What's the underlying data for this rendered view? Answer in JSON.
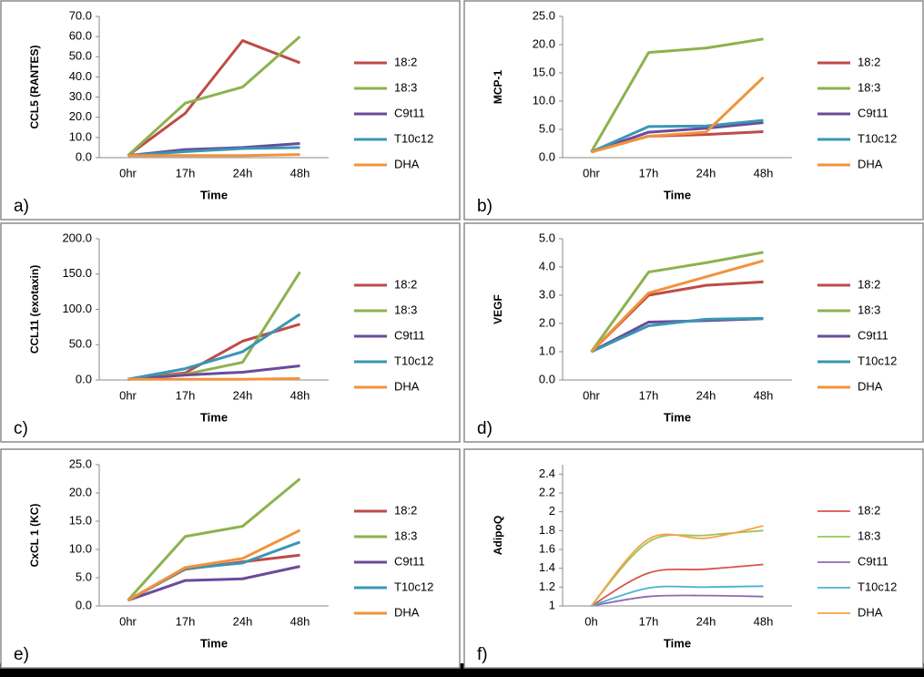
{
  "chart_data": [
    {
      "type": "line",
      "panel_label": "a)",
      "ylabel": "CCL5 (RANTES)",
      "xlabel": "Time",
      "categories": [
        "0hr",
        "17h",
        "24h",
        "48h"
      ],
      "ylim": [
        0,
        70
      ],
      "yticks": [
        {
          "value": 0,
          "label": "0.0"
        },
        {
          "value": 10,
          "label": "10.0"
        },
        {
          "value": 20,
          "label": "20.0"
        },
        {
          "value": 30,
          "label": "30.0"
        },
        {
          "value": 40,
          "label": "40.0"
        },
        {
          "value": 50,
          "label": "50.0"
        },
        {
          "value": 60,
          "label": "60.0"
        },
        {
          "value": 70,
          "label": "70.0"
        }
      ],
      "series": [
        {
          "name": "18:2",
          "color": "#be4b48",
          "values": [
            1,
            22,
            58,
            47
          ]
        },
        {
          "name": "18:3",
          "color": "#8cb24f",
          "values": [
            1,
            27,
            35,
            60
          ]
        },
        {
          "name": "C9t11",
          "color": "#6a4b9a",
          "values": [
            1,
            4,
            5,
            7
          ]
        },
        {
          "name": "T10c12",
          "color": "#3a96b5",
          "values": [
            1,
            3,
            4.5,
            5
          ]
        },
        {
          "name": "DHA",
          "color": "#f2923b",
          "values": [
            1,
            1,
            1,
            1.5
          ]
        }
      ]
    },
    {
      "type": "line",
      "panel_label": "b)",
      "ylabel": "MCP-1",
      "xlabel": "Time",
      "categories": [
        "0hr",
        "17h",
        "24h",
        "48h"
      ],
      "ylim": [
        0,
        25
      ],
      "yticks": [
        {
          "value": 0,
          "label": "0.0"
        },
        {
          "value": 5,
          "label": "5.0"
        },
        {
          "value": 10,
          "label": "10.0"
        },
        {
          "value": 15,
          "label": "15.0"
        },
        {
          "value": 20,
          "label": "20.0"
        },
        {
          "value": 25,
          "label": "25.0"
        }
      ],
      "series": [
        {
          "name": "18:2",
          "color": "#be4b48",
          "values": [
            1,
            3.8,
            4.1,
            4.6
          ]
        },
        {
          "name": "18:3",
          "color": "#8cb24f",
          "values": [
            1,
            18.6,
            19.4,
            21
          ]
        },
        {
          "name": "C9t11",
          "color": "#6a4b9a",
          "values": [
            1,
            4.5,
            5.2,
            6.2
          ]
        },
        {
          "name": "T10c12",
          "color": "#3a96b5",
          "values": [
            1,
            5.5,
            5.6,
            6.6
          ]
        },
        {
          "name": "DHA",
          "color": "#f2923b",
          "values": [
            1,
            3.8,
            4.5,
            14.2
          ]
        }
      ]
    },
    {
      "type": "line",
      "panel_label": "c)",
      "ylabel": "CCL11 (exotaxin)",
      "xlabel": "Time",
      "categories": [
        "0hr",
        "17h",
        "24h",
        "48h"
      ],
      "ylim": [
        0,
        200
      ],
      "yticks": [
        {
          "value": 0,
          "label": "0.0"
        },
        {
          "value": 50,
          "label": "50.0"
        },
        {
          "value": 100,
          "label": "100.0"
        },
        {
          "value": 150,
          "label": "150.0"
        },
        {
          "value": 200,
          "label": "200.0"
        }
      ],
      "series": [
        {
          "name": "18:2",
          "color": "#be4b48",
          "values": [
            1,
            10,
            55,
            79
          ]
        },
        {
          "name": "18:3",
          "color": "#8cb24f",
          "values": [
            1,
            8,
            25,
            153
          ]
        },
        {
          "name": "C9t11",
          "color": "#6a4b9a",
          "values": [
            1,
            7,
            11,
            20
          ]
        },
        {
          "name": "T10c12",
          "color": "#3a96b5",
          "values": [
            1,
            16,
            40,
            93
          ]
        },
        {
          "name": "DHA",
          "color": "#f2923b",
          "values": [
            1,
            1,
            1,
            2
          ]
        }
      ]
    },
    {
      "type": "line",
      "panel_label": "d)",
      "ylabel": "VEGF",
      "xlabel": "Time",
      "categories": [
        "0hr",
        "17h",
        "24h",
        "48h"
      ],
      "ylim": [
        0,
        5
      ],
      "yticks": [
        {
          "value": 0,
          "label": "0.0"
        },
        {
          "value": 1,
          "label": "1.0"
        },
        {
          "value": 2,
          "label": "2.0"
        },
        {
          "value": 3,
          "label": "3.0"
        },
        {
          "value": 4,
          "label": "4.0"
        },
        {
          "value": 5,
          "label": "5.0"
        }
      ],
      "series": [
        {
          "name": "18:2",
          "color": "#be4b48",
          "values": [
            1,
            3.0,
            3.35,
            3.47
          ]
        },
        {
          "name": "18:3",
          "color": "#8cb24f",
          "values": [
            1,
            3.82,
            4.15,
            4.52
          ]
        },
        {
          "name": "C9t11",
          "color": "#6a4b9a",
          "values": [
            1,
            2.05,
            2.1,
            2.17
          ]
        },
        {
          "name": "T10c12",
          "color": "#3a96b5",
          "values": [
            1,
            1.92,
            2.15,
            2.18
          ]
        },
        {
          "name": "DHA",
          "color": "#f2923b",
          "values": [
            1,
            3.08,
            3.65,
            4.22
          ]
        }
      ]
    },
    {
      "type": "line",
      "panel_label": "e)",
      "ylabel": "CxCL 1 (KC)",
      "xlabel": "Time",
      "categories": [
        "0hr",
        "17h",
        "24h",
        "48h"
      ],
      "ylim": [
        0,
        25
      ],
      "yticks": [
        {
          "value": 0,
          "label": "0.0"
        },
        {
          "value": 5,
          "label": "5.0"
        },
        {
          "value": 10,
          "label": "10.0"
        },
        {
          "value": 15,
          "label": "15.0"
        },
        {
          "value": 20,
          "label": "20.0"
        },
        {
          "value": 25,
          "label": "25.0"
        }
      ],
      "series": [
        {
          "name": "18:2",
          "color": "#be4b48",
          "values": [
            1,
            6.5,
            7.8,
            9
          ]
        },
        {
          "name": "18:3",
          "color": "#8cb24f",
          "values": [
            1,
            12.3,
            14.1,
            22.5
          ]
        },
        {
          "name": "C9t11",
          "color": "#6a4b9a",
          "values": [
            1,
            4.5,
            4.8,
            7
          ]
        },
        {
          "name": "T10c12",
          "color": "#3a96b5",
          "values": [
            1,
            6.6,
            7.6,
            11.3
          ]
        },
        {
          "name": "DHA",
          "color": "#f2923b",
          "values": [
            1,
            6.8,
            8.4,
            13.4
          ]
        }
      ]
    },
    {
      "type": "line",
      "smooth": true,
      "panel_label": "f)",
      "ylabel": "AdipoQ",
      "xlabel": "Time",
      "categories": [
        "0h",
        "17h",
        "24h",
        "48h"
      ],
      "ylim": [
        1,
        2.5
      ],
      "yticks": [
        1,
        1.2,
        1.4,
        1.6,
        1.8,
        2,
        2.2,
        2.4
      ],
      "series": [
        {
          "name": "18:2",
          "color": "#d9534f",
          "values": [
            1,
            1.35,
            1.39,
            1.44
          ]
        },
        {
          "name": "18:3",
          "color": "#9bc45a",
          "values": [
            1,
            1.68,
            1.75,
            1.8
          ]
        },
        {
          "name": "C9t11",
          "color": "#8a6bb0",
          "values": [
            1,
            1.1,
            1.11,
            1.1
          ]
        },
        {
          "name": "T10c12",
          "color": "#4bb0d4",
          "values": [
            1,
            1.19,
            1.2,
            1.21
          ]
        },
        {
          "name": "DHA",
          "color": "#f7a042",
          "values": [
            1,
            1.71,
            1.72,
            1.85
          ]
        }
      ]
    }
  ]
}
